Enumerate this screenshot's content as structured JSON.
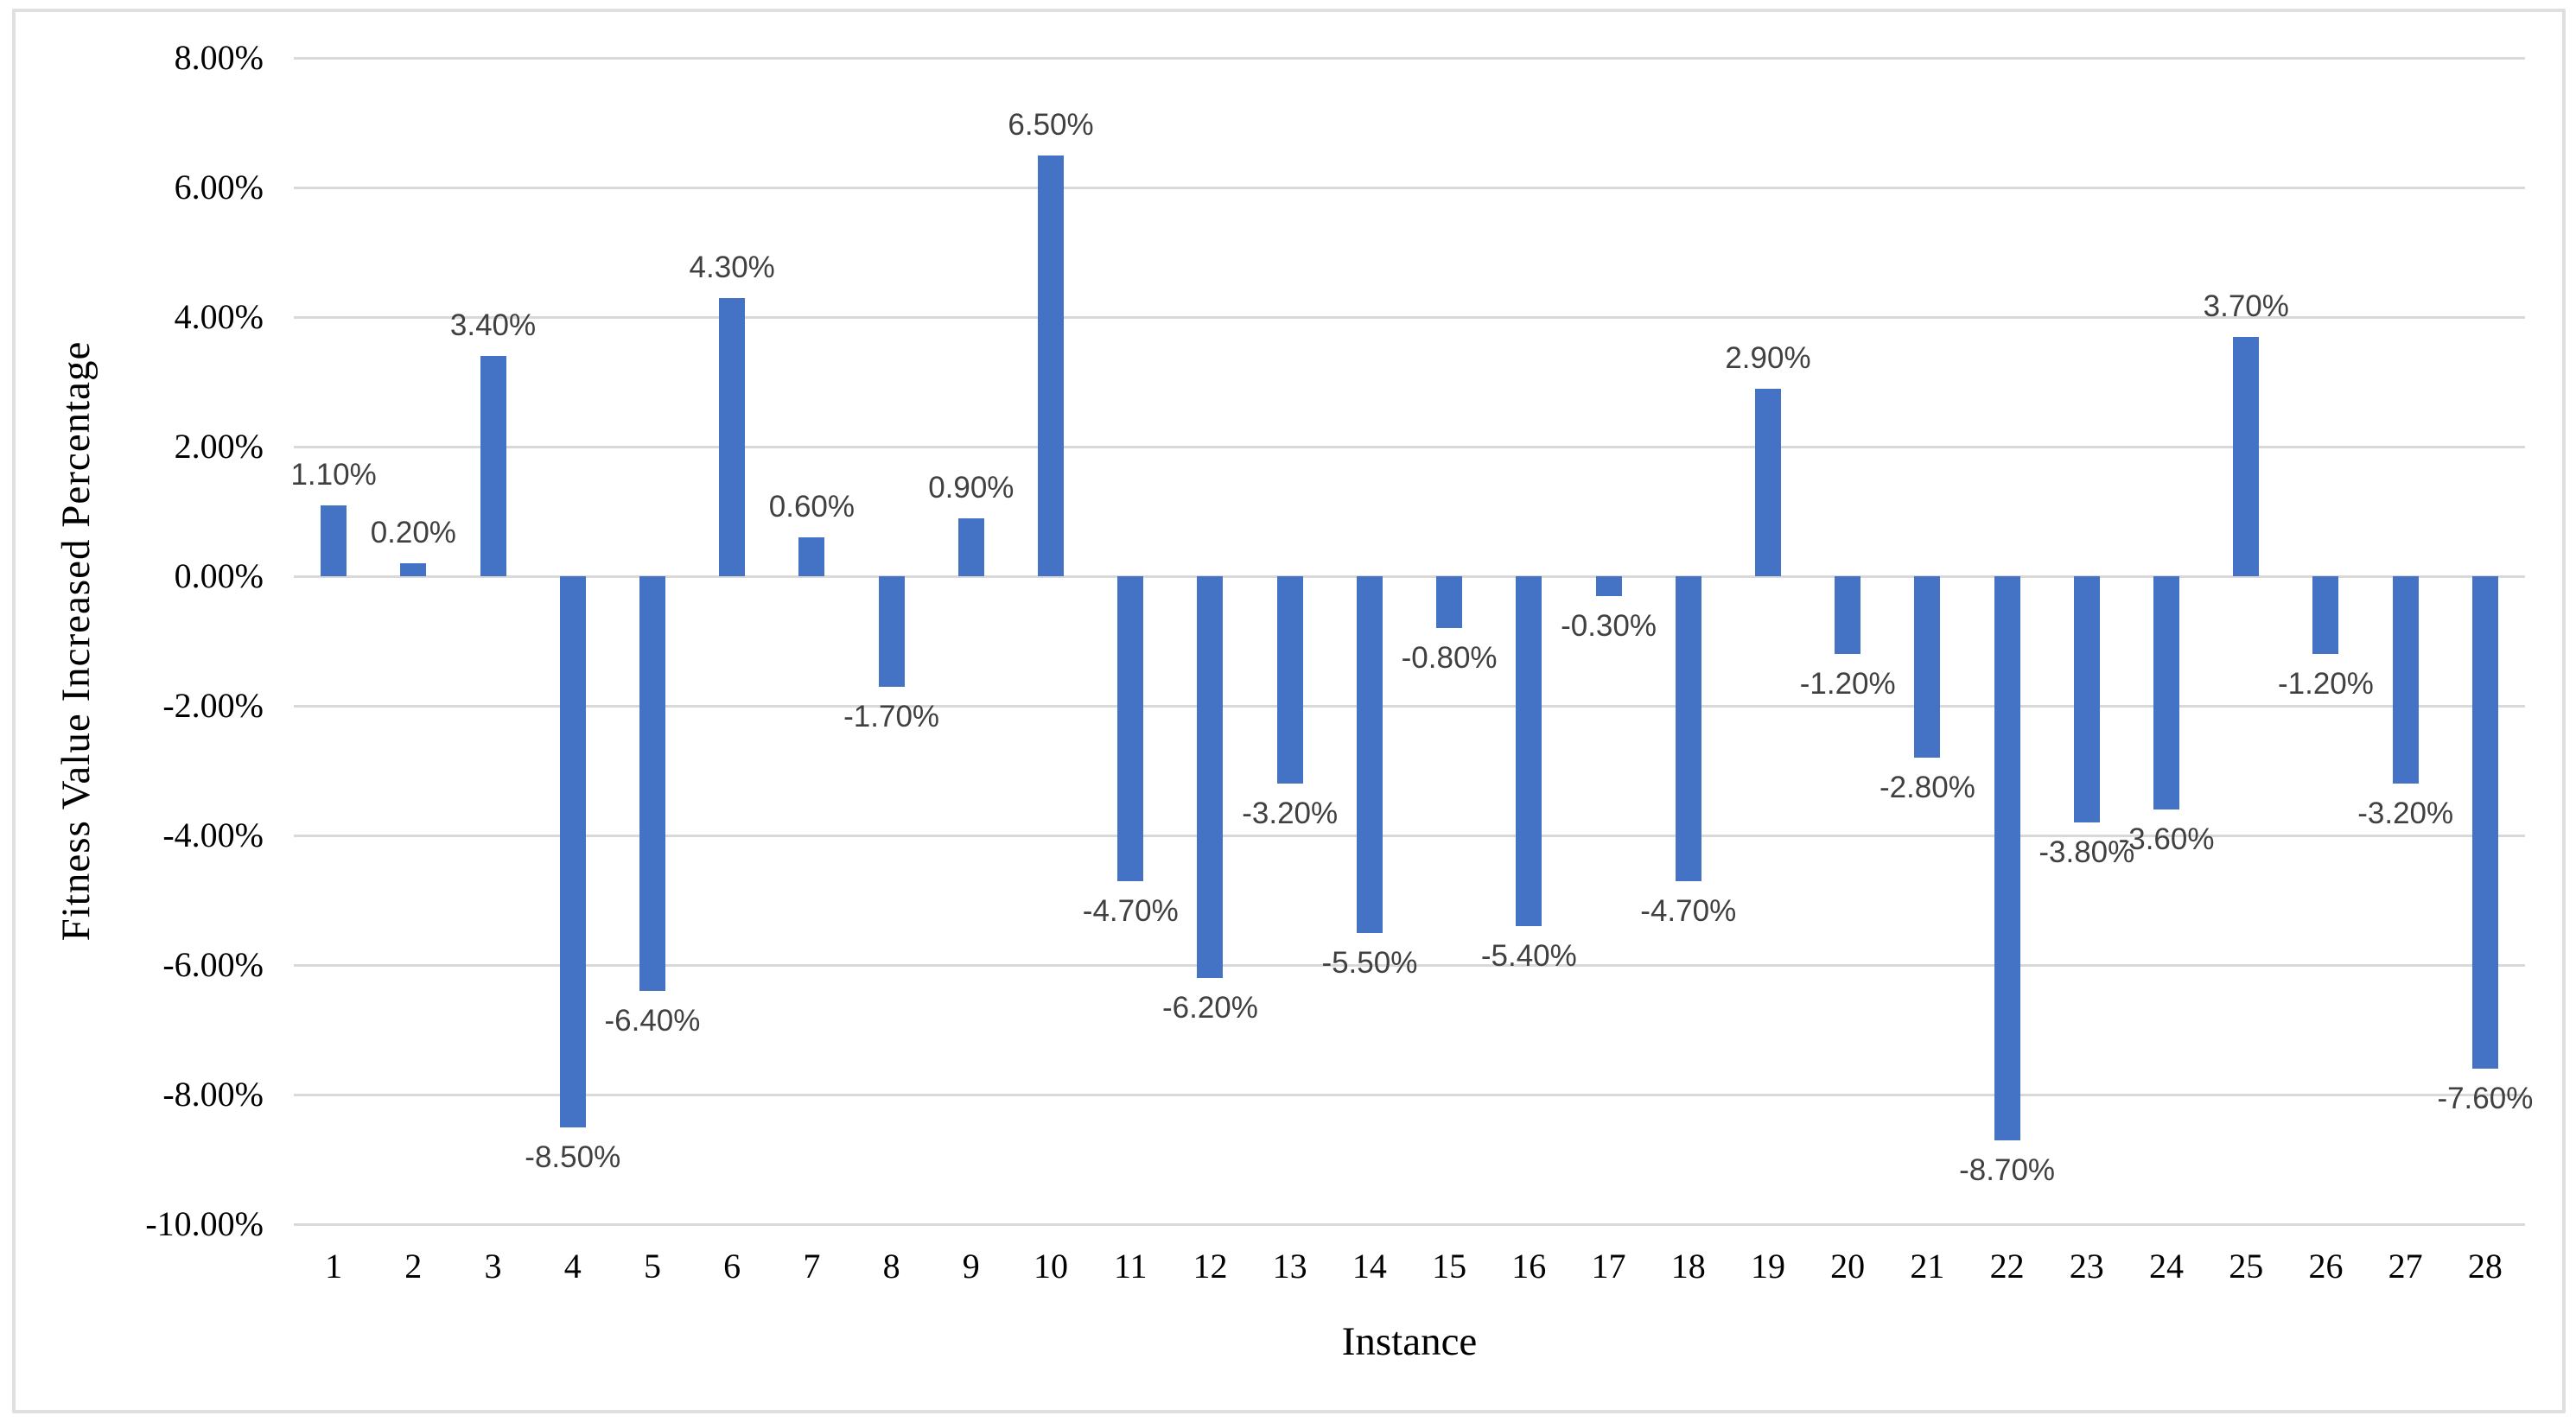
{
  "figure": {
    "background": "#ffffff",
    "border_color": "#dfdfdf"
  },
  "chart_data": {
    "type": "bar",
    "title": "",
    "xlabel": "Instance",
    "ylabel": "Fitness Value Increased Percentage",
    "categories": [
      "1",
      "2",
      "3",
      "4",
      "5",
      "6",
      "7",
      "8",
      "9",
      "10",
      "11",
      "12",
      "13",
      "14",
      "15",
      "16",
      "17",
      "18",
      "19",
      "20",
      "21",
      "22",
      "23",
      "24",
      "25",
      "26",
      "27",
      "28"
    ],
    "values": [
      1.1,
      0.2,
      3.4,
      -8.5,
      -6.4,
      4.3,
      0.6,
      -1.7,
      0.9,
      6.5,
      -4.7,
      -6.2,
      -3.2,
      -5.5,
      -0.8,
      -5.4,
      -0.3,
      -4.7,
      2.9,
      -1.2,
      -2.8,
      -8.7,
      -3.8,
      -3.6,
      3.7,
      -1.2,
      -3.2,
      -7.6
    ],
    "data_labels": [
      "1.10%",
      "0.20%",
      "3.40%",
      "-8.50%",
      "-6.40%",
      "4.30%",
      "0.60%",
      "-1.70%",
      "0.90%",
      "6.50%",
      "-4.70%",
      "-6.20%",
      "-3.20%",
      "-5.50%",
      "-0.80%",
      "-5.40%",
      "-0.30%",
      "-4.70%",
      "2.90%",
      "-1.20%",
      "-2.80%",
      "-8.70%",
      "-3.80%",
      "-3.60%",
      "3.70%",
      "-1.20%",
      "-3.20%",
      "-7.60%"
    ],
    "ylim": [
      -10,
      8
    ],
    "ytick_step": 2,
    "ytick_values": [
      8,
      6,
      4,
      2,
      0,
      -2,
      -4,
      -6,
      -8,
      -10
    ],
    "ytick_labels": [
      "8.00%",
      "6.00%",
      "4.00%",
      "2.00%",
      "0.00%",
      "-2.00%",
      "-4.00%",
      "-6.00%",
      "-8.00%",
      "-10.00%"
    ],
    "grid": "horizontal",
    "legend": "none",
    "bar_color": "#4472C4",
    "gridline_color": "#d9d9d9",
    "label_color": "#404040",
    "tick_color": "#000000"
  }
}
